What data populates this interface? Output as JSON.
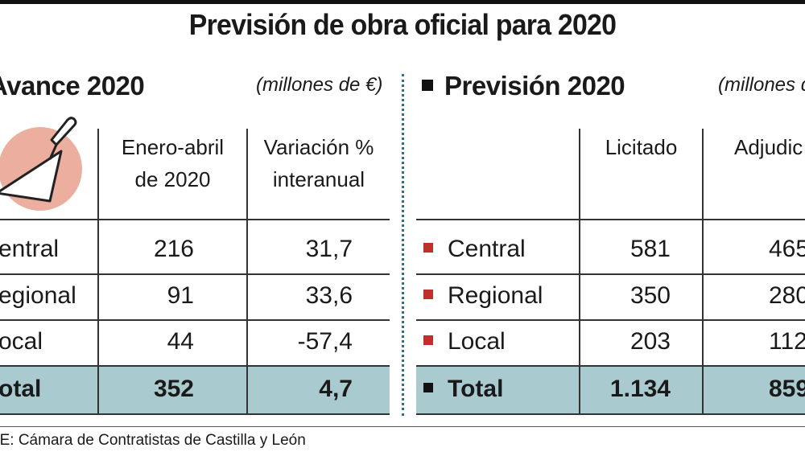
{
  "title": "Previsión de obra oficial para 2020",
  "source": "TE: Cámara de Contratistas de Castilla y León",
  "colors": {
    "total_band": "#a9cbcf",
    "marker_red": "#c0302a",
    "divider_dotted": "#2e6f8e",
    "icon_circle": "#e9a08e"
  },
  "left_panel": {
    "title": "Avance 2020",
    "units": "(millones de €)",
    "icon": "trowel-icon",
    "headers": [
      "Enero-abril",
      "de 2020",
      "Variación %",
      "interanual"
    ],
    "rows": [
      {
        "label": "entral",
        "value": "216",
        "variation": "31,7"
      },
      {
        "label": "egional",
        "value": "91",
        "variation": "33,6"
      },
      {
        "label": "ocal",
        "value": "44",
        "variation": "-57,4"
      }
    ],
    "total": {
      "label": "otal",
      "value": "352",
      "variation": "4,7"
    }
  },
  "right_panel": {
    "title": "Previsión 2020",
    "units": "(millones de",
    "headers": [
      "Licitado",
      "Adjudic"
    ],
    "rows": [
      {
        "label": "Central",
        "licitado": "581",
        "adjudicado": "465"
      },
      {
        "label": "Regional",
        "licitado": "350",
        "adjudicado": "280"
      },
      {
        "label": "Local",
        "licitado": "203",
        "adjudicado": "112"
      }
    ],
    "total": {
      "label": "Total",
      "licitado": "1.134",
      "adjudicado": "859"
    }
  },
  "chart_data": [
    {
      "type": "table",
      "title": "Avance 2020",
      "units": "millones de €",
      "columns": [
        "Enero-abril de 2020",
        "Variación % interanual"
      ],
      "rows": [
        {
          "category": "Central",
          "values": [
            216,
            31.7
          ]
        },
        {
          "category": "Regional",
          "values": [
            91,
            33.6
          ]
        },
        {
          "category": "Local",
          "values": [
            44,
            -57.4
          ]
        },
        {
          "category": "Total",
          "values": [
            352,
            4.7
          ]
        }
      ]
    },
    {
      "type": "table",
      "title": "Previsión 2020",
      "units": "millones de €",
      "columns": [
        "Licitado",
        "Adjudicado"
      ],
      "rows": [
        {
          "category": "Central",
          "values": [
            581,
            465
          ]
        },
        {
          "category": "Regional",
          "values": [
            350,
            280
          ]
        },
        {
          "category": "Local",
          "values": [
            203,
            112
          ]
        },
        {
          "category": "Total",
          "values": [
            1134,
            859
          ]
        }
      ]
    }
  ]
}
